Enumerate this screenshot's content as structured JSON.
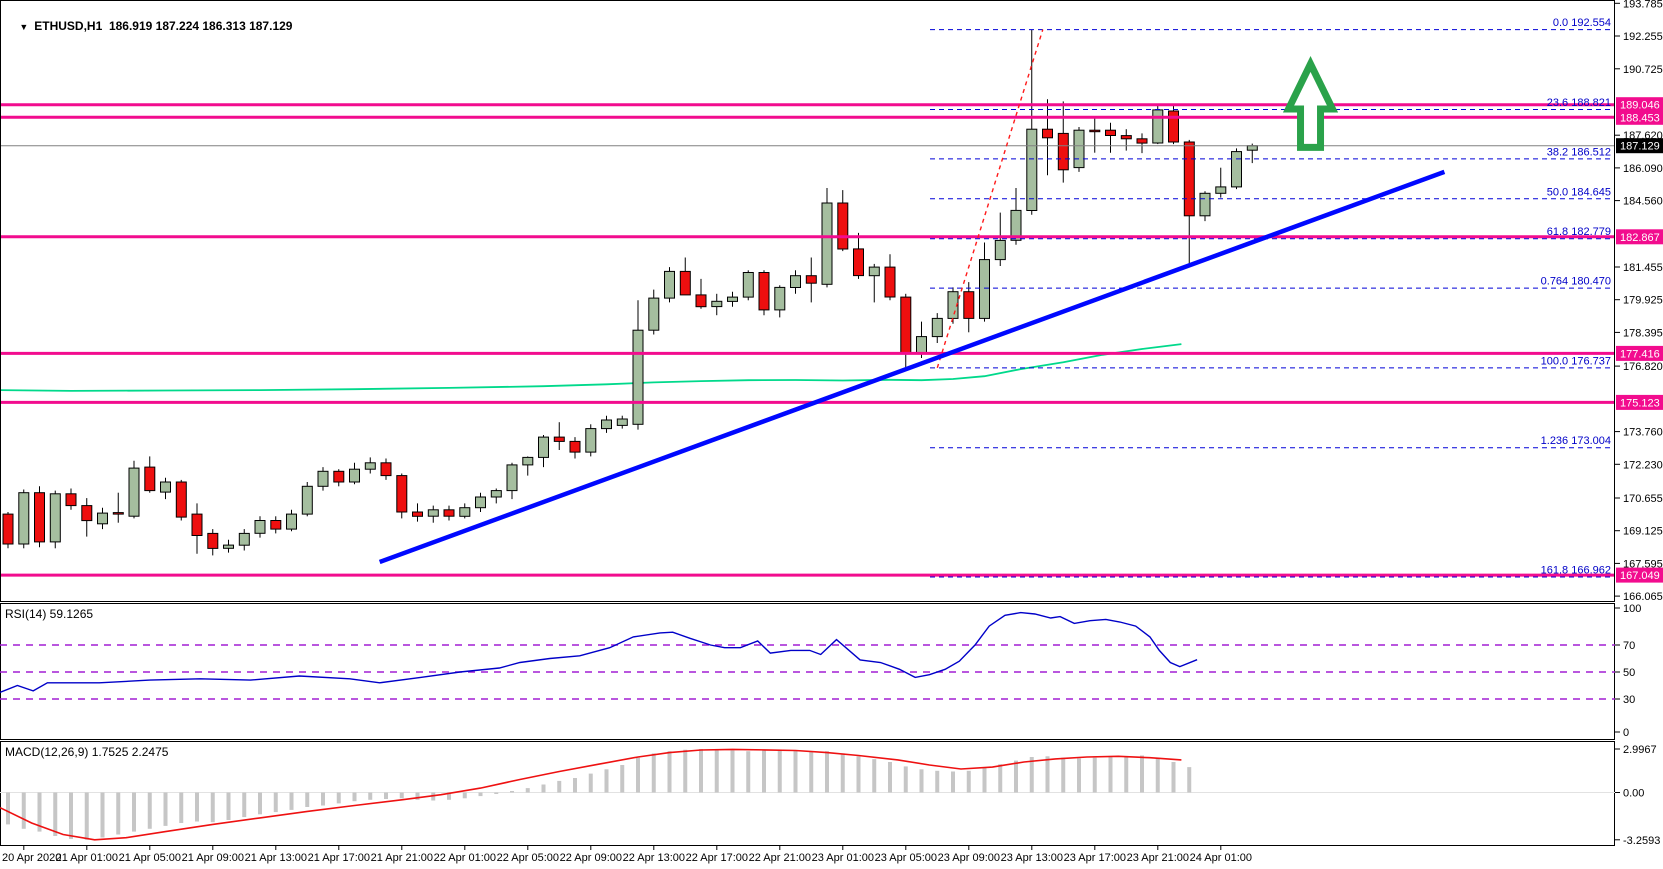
{
  "window": {
    "dropdown_icon": "▼",
    "symbol": "ETHUSD,H1",
    "ohlc": "186.919 187.224 186.313 187.129"
  },
  "colors": {
    "background": "#ffffff",
    "bull_candle": "#a5be9f",
    "bear_candle": "#ee0f0f",
    "candle_outline": "#000000",
    "magenta_line": "#f20c8e",
    "badge_text": "#ffffff",
    "current_price_line": "#808080",
    "current_price_badge": "#000000",
    "fib_line": "#0000d8",
    "fib_text": "#0000c8",
    "trendline": "#0008ff",
    "fib_guideline": "#ff1a1a",
    "ma_line": "#00d98b",
    "arrow": "#2aa24a",
    "rsi_line": "#0000c8",
    "rsi_levels": "#a21fd4",
    "macd_histogram": "#c6c6c6",
    "macd_signal": "#ee1111",
    "axis_text": "#000000"
  },
  "chart_data": {
    "type": "candlestick",
    "symbol": "ETHUSD",
    "timeframe": "H1",
    "title": "ETHUSD,H1 186.919 187.224 186.313 187.129",
    "price_axis_ticks": [
      "193.785",
      "192.255",
      "190.725",
      "187.620",
      "186.090",
      "184.560",
      "181.455",
      "179.925",
      "178.395",
      "176.820",
      "173.760",
      "172.230",
      "170.655",
      "169.125",
      "167.595",
      "166.065"
    ],
    "x_labels": [
      {
        "i": 1,
        "t": "20 Apr 2020"
      },
      {
        "i": 5,
        "t": "21 Apr 01:00"
      },
      {
        "i": 9,
        "t": "21 Apr 05:00"
      },
      {
        "i": 13,
        "t": "21 Apr 09:00"
      },
      {
        "i": 17,
        "t": "21 Apr 13:00"
      },
      {
        "i": 21,
        "t": "21 Apr 17:00"
      },
      {
        "i": 25,
        "t": "21 Apr 21:00"
      },
      {
        "i": 29,
        "t": "22 Apr 01:00"
      },
      {
        "i": 33,
        "t": "22 Apr 05:00"
      },
      {
        "i": 37,
        "t": "22 Apr 09:00"
      },
      {
        "i": 41,
        "t": "22 Apr 13:00"
      },
      {
        "i": 45,
        "t": "22 Apr 17:00"
      },
      {
        "i": 49,
        "t": "22 Apr 21:00"
      },
      {
        "i": 53,
        "t": "23 Apr 01:00"
      },
      {
        "i": 57,
        "t": "23 Apr 05:00"
      },
      {
        "i": 61,
        "t": "23 Apr 09:00"
      },
      {
        "i": 65,
        "t": "23 Apr 13:00"
      },
      {
        "i": 69,
        "t": "23 Apr 17:00"
      },
      {
        "i": 73,
        "t": "23 Apr 21:00"
      },
      {
        "i": 77,
        "t": "24 Apr 01:00"
      }
    ],
    "candles": [
      [
        169.9,
        170.0,
        168.3,
        168.5
      ],
      [
        168.5,
        171.05,
        168.3,
        170.9
      ],
      [
        170.9,
        171.2,
        168.35,
        168.6
      ],
      [
        168.6,
        171.0,
        168.3,
        170.85
      ],
      [
        170.85,
        171.1,
        170.1,
        170.3
      ],
      [
        170.3,
        170.65,
        168.85,
        169.6
      ],
      [
        169.45,
        170.2,
        169.2,
        169.95
      ],
      [
        169.97,
        170.9,
        169.5,
        169.93
      ],
      [
        169.8,
        172.4,
        169.7,
        172.05
      ],
      [
        172.1,
        172.6,
        170.9,
        171.0
      ],
      [
        170.93,
        171.6,
        170.6,
        171.4
      ],
      [
        171.4,
        171.5,
        169.6,
        169.76
      ],
      [
        169.9,
        170.4,
        168.05,
        168.9
      ],
      [
        169.0,
        169.2,
        167.97,
        168.3
      ],
      [
        168.3,
        168.7,
        168.1,
        168.45
      ],
      [
        168.45,
        169.2,
        168.2,
        169.0
      ],
      [
        169.0,
        169.8,
        168.8,
        169.6
      ],
      [
        169.6,
        169.8,
        169.0,
        169.2
      ],
      [
        169.2,
        170.1,
        169.1,
        169.9
      ],
      [
        169.9,
        171.4,
        169.8,
        171.2
      ],
      [
        171.2,
        172.1,
        171.0,
        171.9
      ],
      [
        171.9,
        172.0,
        171.2,
        171.4
      ],
      [
        171.4,
        172.3,
        171.3,
        172.0
      ],
      [
        172.0,
        172.55,
        171.8,
        172.3
      ],
      [
        172.3,
        172.5,
        171.5,
        171.7
      ],
      [
        171.7,
        171.8,
        169.7,
        170.0
      ],
      [
        170.0,
        170.4,
        169.55,
        169.8
      ],
      [
        169.8,
        170.3,
        169.5,
        170.1
      ],
      [
        170.1,
        170.3,
        169.6,
        169.8
      ],
      [
        169.8,
        170.4,
        169.7,
        170.2
      ],
      [
        170.2,
        170.9,
        170.0,
        170.7
      ],
      [
        170.7,
        171.1,
        170.4,
        171.0
      ],
      [
        171.0,
        172.3,
        170.6,
        172.2
      ],
      [
        172.2,
        172.6,
        171.7,
        172.55
      ],
      [
        172.55,
        173.6,
        172.1,
        173.5
      ],
      [
        173.5,
        174.2,
        172.9,
        173.3
      ],
      [
        173.3,
        173.5,
        172.5,
        172.8
      ],
      [
        172.8,
        174.1,
        172.6,
        173.9
      ],
      [
        173.9,
        174.5,
        173.7,
        174.3
      ],
      [
        174.05,
        174.5,
        173.9,
        174.35
      ],
      [
        174.1,
        179.9,
        173.85,
        178.5
      ],
      [
        178.5,
        180.4,
        178.3,
        180.0
      ],
      [
        180.0,
        181.45,
        179.8,
        181.25
      ],
      [
        181.25,
        181.9,
        180.3,
        180.15
      ],
      [
        180.15,
        180.9,
        179.5,
        179.6
      ],
      [
        179.6,
        180.2,
        179.2,
        179.85
      ],
      [
        179.85,
        180.3,
        179.6,
        180.05
      ],
      [
        180.05,
        181.3,
        179.9,
        181.2
      ],
      [
        181.2,
        181.3,
        179.2,
        179.45
      ],
      [
        179.45,
        180.6,
        179.1,
        180.5
      ],
      [
        180.5,
        181.3,
        180.2,
        181.05
      ],
      [
        181.05,
        181.9,
        179.8,
        180.7
      ],
      [
        180.65,
        185.15,
        180.5,
        184.45
      ],
      [
        184.45,
        185.05,
        182.2,
        182.3
      ],
      [
        182.3,
        183.05,
        180.9,
        181.05
      ],
      [
        181.05,
        181.6,
        179.8,
        181.45
      ],
      [
        181.45,
        182.05,
        179.9,
        180.05
      ],
      [
        180.05,
        180.2,
        176.74,
        177.45
      ],
      [
        177.45,
        178.9,
        177.2,
        178.2
      ],
      [
        178.2,
        179.3,
        177.9,
        179.05
      ],
      [
        179.05,
        180.5,
        178.8,
        180.3
      ],
      [
        180.3,
        180.75,
        178.4,
        179.05
      ],
      [
        179.05,
        182.6,
        178.9,
        181.8
      ],
      [
        181.8,
        184.0,
        181.5,
        182.7
      ],
      [
        182.7,
        185.15,
        182.5,
        184.1
      ],
      [
        184.1,
        192.554,
        183.9,
        187.9
      ],
      [
        187.9,
        189.3,
        185.75,
        187.5
      ],
      [
        187.7,
        189.2,
        185.4,
        186.0
      ],
      [
        186.1,
        188.0,
        185.9,
        187.85
      ],
      [
        187.85,
        188.4,
        186.8,
        187.8
      ],
      [
        187.85,
        188.2,
        186.8,
        187.6
      ],
      [
        187.6,
        187.9,
        186.9,
        187.45
      ],
      [
        187.45,
        187.7,
        186.78,
        187.25
      ],
      [
        187.25,
        189.0,
        187.2,
        188.8
      ],
      [
        188.75,
        189.0,
        187.2,
        187.3
      ],
      [
        187.3,
        187.4,
        181.45,
        183.85
      ],
      [
        183.85,
        185.0,
        183.6,
        184.9
      ],
      [
        184.9,
        186.1,
        184.7,
        185.2
      ],
      [
        185.2,
        187.0,
        185.1,
        186.85
      ],
      [
        186.919,
        187.224,
        186.313,
        187.129
      ]
    ],
    "hlines": [
      {
        "price": 189.046,
        "label": "189.046"
      },
      {
        "price": 188.453,
        "label": "188.453"
      },
      {
        "price": 182.867,
        "label": "182.867"
      },
      {
        "price": 177.416,
        "label": "177.416"
      },
      {
        "price": 175.123,
        "label": "175.123"
      },
      {
        "price": 167.049,
        "label": "167.049"
      }
    ],
    "current_price": {
      "price": 187.129,
      "label": "187.129"
    },
    "fib_levels": [
      {
        "label": "0.0",
        "value": "192.554",
        "price": 192.554
      },
      {
        "label": "23.6",
        "value": "188.821",
        "price": 188.821
      },
      {
        "label": "38.2",
        "value": "186.512",
        "price": 186.512
      },
      {
        "label": "50.0",
        "value": "184.645",
        "price": 184.645
      },
      {
        "label": "61.8",
        "value": "182.779",
        "price": 182.779
      },
      {
        "label": "0.764",
        "value": "180.470",
        "price": 180.47
      },
      {
        "label": "100.0",
        "value": "176.737",
        "price": 176.737
      },
      {
        "label": "1.236",
        "value": "173.004",
        "price": 173.004
      },
      {
        "label": "161.8",
        "value": "166.962",
        "price": 166.962
      }
    ],
    "trendline": {
      "from": {
        "i": 23.6,
        "price": 167.66
      },
      "to": {
        "i": 91.2,
        "price": 185.9
      }
    },
    "fib_guideline": {
      "from": {
        "i": 59.0,
        "price": 176.74
      },
      "to": {
        "i": 65.7,
        "price": 192.554
      }
    },
    "arrow_marker": {
      "i": 82.7,
      "price_top": 190.95,
      "price_bottom": 187.05
    },
    "ma_line": [
      [
        -0.5,
        175.7
      ],
      [
        4,
        175.66
      ],
      [
        10,
        175.68
      ],
      [
        16,
        175.7
      ],
      [
        22,
        175.74
      ],
      [
        28,
        175.8
      ],
      [
        34,
        175.88
      ],
      [
        38,
        175.97
      ],
      [
        41,
        176.06
      ],
      [
        44,
        176.12
      ],
      [
        47,
        176.16
      ],
      [
        50,
        176.17
      ],
      [
        53,
        176.15
      ],
      [
        56,
        176.18
      ],
      [
        58,
        176.16
      ],
      [
        60,
        176.22
      ],
      [
        62,
        176.35
      ],
      [
        64.3,
        176.68
      ],
      [
        67,
        177.0
      ],
      [
        69.5,
        177.35
      ],
      [
        72,
        177.62
      ],
      [
        74.5,
        177.85
      ]
    ],
    "rsi": {
      "label": "RSI(14) 59.1265",
      "value": 59.1265,
      "scale": [
        0,
        100
      ],
      "levels": [
        70,
        50,
        30
      ],
      "axis_labels": [
        "100",
        "70",
        "50",
        "30",
        "0"
      ],
      "points": [
        [
          -0.5,
          35
        ],
        [
          0.6,
          40
        ],
        [
          1.6,
          36
        ],
        [
          2.5,
          42
        ],
        [
          5.8,
          42
        ],
        [
          9,
          44
        ],
        [
          12.2,
          45
        ],
        [
          15.4,
          44
        ],
        [
          18.5,
          47
        ],
        [
          21.7,
          45
        ],
        [
          23.6,
          42
        ],
        [
          26.2,
          46
        ],
        [
          28.7,
          50
        ],
        [
          31.2,
          53
        ],
        [
          32.5,
          57
        ],
        [
          34.4,
          60
        ],
        [
          36.3,
          62
        ],
        [
          38.2,
          68
        ],
        [
          39.7,
          76
        ],
        [
          41.4,
          79
        ],
        [
          42.2,
          79.5
        ],
        [
          43.3,
          75
        ],
        [
          44.6,
          70
        ],
        [
          45.5,
          68
        ],
        [
          46.5,
          68
        ],
        [
          47.6,
          73
        ],
        [
          48.4,
          64
        ],
        [
          49.7,
          66
        ],
        [
          50.9,
          66
        ],
        [
          51.6,
          63
        ],
        [
          52.6,
          74
        ],
        [
          54.1,
          59
        ],
        [
          55.4,
          57
        ],
        [
          56.6,
          52
        ],
        [
          57.6,
          46
        ],
        [
          58.5,
          48
        ],
        [
          59.5,
          52
        ],
        [
          60.4,
          58
        ],
        [
          61.4,
          70
        ],
        [
          62.3,
          84
        ],
        [
          63.3,
          92
        ],
        [
          64.3,
          94
        ],
        [
          65.2,
          93
        ],
        [
          66.2,
          90
        ],
        [
          66.8,
          91
        ],
        [
          67.7,
          86
        ],
        [
          68.7,
          88
        ],
        [
          69.7,
          89
        ],
        [
          70.6,
          87
        ],
        [
          71.6,
          84
        ],
        [
          72.5,
          76
        ],
        [
          73.1,
          66
        ],
        [
          73.8,
          57
        ],
        [
          74.4,
          54
        ],
        [
          75.5,
          59.13
        ]
      ]
    },
    "macd": {
      "label": "MACD(12,26,9) 1.7525 2.2475",
      "value": 1.7525,
      "signal_value": 2.2475,
      "axis_labels": [
        "2.9967",
        "0.00",
        "-3.2593"
      ],
      "scale": {
        "max": 2.9967,
        "min": -3.2593
      },
      "histogram": [
        -2.2,
        -2.5,
        -2.7,
        -3.0,
        -3.2,
        -3.26,
        -3.1,
        -2.9,
        -2.7,
        -2.5,
        -2.3,
        -2.1,
        -2.0,
        -2.05,
        -1.9,
        -1.7,
        -1.5,
        -1.35,
        -1.2,
        -1.0,
        -0.9,
        -0.75,
        -0.6,
        -0.5,
        -0.45,
        -0.4,
        -0.5,
        -0.55,
        -0.5,
        -0.4,
        -0.25,
        -0.1,
        0.1,
        0.3,
        0.55,
        0.8,
        1.0,
        1.3,
        1.6,
        1.9,
        2.4,
        2.7,
        2.85,
        2.95,
        2.9967,
        2.95,
        2.9,
        2.85,
        2.9,
        2.95,
        2.9,
        2.8,
        2.85,
        2.7,
        2.5,
        2.3,
        2.1,
        1.8,
        1.6,
        1.5,
        1.45,
        1.5,
        1.7,
        1.95,
        2.2,
        2.45,
        2.5,
        2.4,
        2.35,
        2.4,
        2.45,
        2.5,
        2.55,
        2.4,
        2.1,
        1.7525
      ],
      "signal": [
        [
          -0.5,
          -1.05
        ],
        [
          1.5,
          -2.1
        ],
        [
          3.5,
          -2.9
        ],
        [
          5.5,
          -3.26
        ],
        [
          7.5,
          -3.12
        ],
        [
          10,
          -2.7
        ],
        [
          13,
          -2.2
        ],
        [
          16,
          -1.75
        ],
        [
          19,
          -1.3
        ],
        [
          22,
          -0.9
        ],
        [
          25,
          -0.5
        ],
        [
          27.5,
          -0.15
        ],
        [
          30,
          0.3
        ],
        [
          32.5,
          0.9
        ],
        [
          35,
          1.45
        ],
        [
          37.5,
          1.95
        ],
        [
          40,
          2.45
        ],
        [
          42,
          2.75
        ],
        [
          44,
          2.93
        ],
        [
          46,
          2.97
        ],
        [
          48,
          2.94
        ],
        [
          50,
          2.9
        ],
        [
          52,
          2.75
        ],
        [
          54,
          2.55
        ],
        [
          56.5,
          2.25
        ],
        [
          58.5,
          1.9
        ],
        [
          60.5,
          1.62
        ],
        [
          62.5,
          1.75
        ],
        [
          64.5,
          2.1
        ],
        [
          66.5,
          2.32
        ],
        [
          68.5,
          2.45
        ],
        [
          70.5,
          2.5
        ],
        [
          72.5,
          2.4
        ],
        [
          74.5,
          2.2475
        ]
      ]
    }
  }
}
